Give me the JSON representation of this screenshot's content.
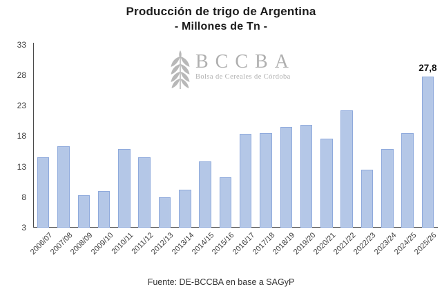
{
  "title": {
    "line1": "Producción de trigo de Argentina",
    "line2": "- Millones de Tn -"
  },
  "watermark": {
    "acronym": "BCCBA",
    "caption": "Bolsa de Cereales de Córdoba",
    "icon": "wheat-spike-icon"
  },
  "footer": {
    "source": "Fuente: DE-BCCBA en base a SAGyP"
  },
  "colors": {
    "bar_fill": "#b4c7e7",
    "bar_border": "#8faadc",
    "axis_line": "#4a4a4a",
    "tick_text": "#3f3f3f",
    "title_text": "#1d1d1d",
    "watermark_gray": "#a9a9a9",
    "annotation_text": "#111111"
  },
  "chart_data": {
    "type": "bar",
    "title": "Producción de trigo de Argentina",
    "subtitle": "- Millones de Tn -",
    "xlabel": "",
    "ylabel": "",
    "categories": [
      "2006/07",
      "2007/08",
      "2008/09",
      "2009/10",
      "2010/11",
      "2011/12",
      "2012/13",
      "2013/14",
      "2014/15",
      "2015/16",
      "2016/17",
      "2017/18",
      "2018/19",
      "2019/20",
      "2020/21",
      "2021/22",
      "2022/23",
      "2023/24",
      "2024/25",
      "2025/26"
    ],
    "values": [
      14.5,
      16.3,
      8.3,
      9.0,
      15.9,
      14.5,
      8.0,
      9.2,
      13.9,
      11.3,
      18.4,
      18.5,
      19.5,
      19.8,
      17.6,
      22.2,
      12.5,
      15.9,
      18.5,
      27.8
    ],
    "yticks": [
      3,
      8,
      13,
      18,
      23,
      28,
      33
    ],
    "ylim": [
      3,
      33
    ],
    "grid": false,
    "legend": "none",
    "annotations": [
      {
        "index": 19,
        "text": "27,8"
      }
    ]
  }
}
